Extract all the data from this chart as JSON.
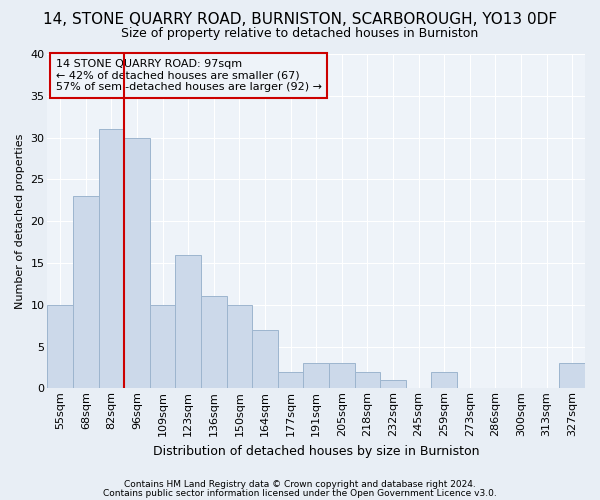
{
  "title": "14, STONE QUARRY ROAD, BURNISTON, SCARBOROUGH, YO13 0DF",
  "subtitle": "Size of property relative to detached houses in Burniston",
  "xlabel": "Distribution of detached houses by size in Burniston",
  "ylabel": "Number of detached properties",
  "categories": [
    "55sqm",
    "68sqm",
    "82sqm",
    "96sqm",
    "109sqm",
    "123sqm",
    "136sqm",
    "150sqm",
    "164sqm",
    "177sqm",
    "191sqm",
    "205sqm",
    "218sqm",
    "232sqm",
    "245sqm",
    "259sqm",
    "273sqm",
    "286sqm",
    "300sqm",
    "313sqm",
    "327sqm"
  ],
  "values": [
    10,
    23,
    31,
    30,
    10,
    16,
    11,
    10,
    7,
    2,
    3,
    3,
    2,
    1,
    0,
    2,
    0,
    0,
    0,
    0,
    3
  ],
  "bar_color": "#ccd9ea",
  "bar_edgecolor": "#9db5ce",
  "vline_color": "#cc0000",
  "vline_bar_index": 3,
  "annotation_text": "14 STONE QUARRY ROAD: 97sqm\n← 42% of detached houses are smaller (67)\n57% of semi-detached houses are larger (92) →",
  "annotation_box_edgecolor": "#cc0000",
  "ylim": [
    0,
    40
  ],
  "yticks": [
    0,
    5,
    10,
    15,
    20,
    25,
    30,
    35,
    40
  ],
  "footer1": "Contains HM Land Registry data © Crown copyright and database right 2024.",
  "footer2": "Contains public sector information licensed under the Open Government Licence v3.0.",
  "bg_color": "#e8eef5",
  "plot_bg_color": "#eef3f9",
  "grid_color": "#ffffff",
  "title_fontsize": 11,
  "subtitle_fontsize": 9,
  "ylabel_fontsize": 8,
  "xlabel_fontsize": 9,
  "tick_fontsize": 8,
  "ann_fontsize": 8,
  "footer_fontsize": 6.5
}
